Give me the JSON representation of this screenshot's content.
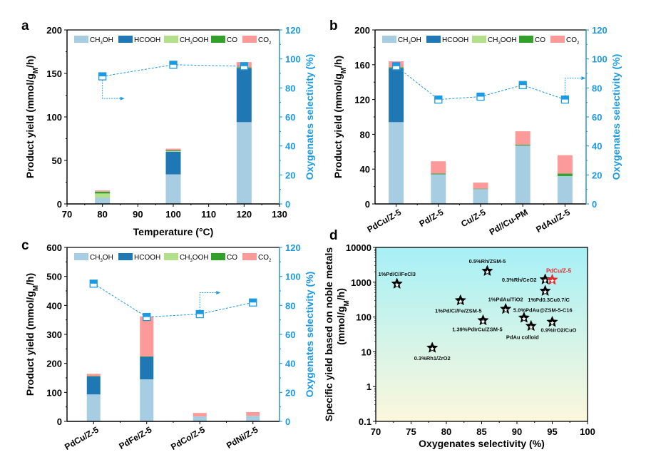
{
  "chart_data": [
    {
      "id": "a",
      "type": "bar",
      "stacked": true,
      "panel_letter": "a",
      "x_type": "numeric",
      "xlabel": "Temperature (°C)",
      "ylabel": "Product yield (mmol/g_M/h)",
      "ylabel_right": "Oxygenates selectivity (%)",
      "xlim": [
        70,
        130
      ],
      "xticks": [
        70,
        80,
        90,
        100,
        110,
        120,
        130
      ],
      "ylim": [
        0,
        200
      ],
      "yticks": [
        0,
        50,
        100,
        150,
        200
      ],
      "ylim_right": [
        0,
        120
      ],
      "yticks_right": [
        0,
        20,
        40,
        60,
        80,
        100,
        120
      ],
      "legend_position": "top",
      "categories": [
        80,
        100,
        120
      ],
      "series": [
        {
          "name": "CH3OH",
          "label_main": "CH",
          "label_sub": "3",
          "label_tail": "OH",
          "color": "#a6cde2",
          "values": [
            7,
            34,
            94
          ]
        },
        {
          "name": "HCOOH",
          "label_main": "HCOOH",
          "label_sub": "",
          "label_tail": "",
          "color": "#1f78b4",
          "values": [
            0,
            26,
            62
          ]
        },
        {
          "name": "CH3OOH",
          "label_main": "CH",
          "label_sub": "3",
          "label_tail": "OOH",
          "color": "#b2df8a",
          "values": [
            5,
            0.5,
            0
          ]
        },
        {
          "name": "CO",
          "label_main": "CO",
          "label_sub": "",
          "label_tail": "",
          "color": "#33a02c",
          "values": [
            2,
            1,
            1
          ]
        },
        {
          "name": "CO2",
          "label_main": "CO",
          "label_sub": "2",
          "label_tail": "",
          "color": "#fb9a99",
          "values": [
            1.5,
            2,
            6
          ]
        }
      ],
      "selectivity": {
        "name": "Oxygenates selectivity",
        "color": "#1b9ae4",
        "values": [
          88,
          96,
          95
        ]
      },
      "arrow_from_index": 0
    },
    {
      "id": "b",
      "type": "bar",
      "stacked": true,
      "panel_letter": "b",
      "x_type": "category",
      "xlabel": "",
      "ylabel": "Product yield (mmol/g_M/h)",
      "ylabel_right": "Oxygenates selectivity (%)",
      "ylim": [
        0,
        200
      ],
      "yticks": [
        0,
        40,
        80,
        120,
        160,
        200
      ],
      "ylim_right": [
        0,
        120
      ],
      "yticks_right": [
        0,
        20,
        40,
        60,
        80,
        100,
        120
      ],
      "legend_position": "top",
      "categories": [
        "PdCu/Z-5",
        "Pd/Z-5",
        "Cu/Z-5",
        "Pd//Cu-PM",
        "PdAu/Z-5"
      ],
      "series": [
        {
          "name": "CH3OH",
          "label_main": "CH",
          "label_sub": "3",
          "label_tail": "OH",
          "color": "#a6cde2",
          "values": [
            94,
            34,
            17,
            67,
            32
          ]
        },
        {
          "name": "HCOOH",
          "label_main": "HCOOH",
          "label_sub": "",
          "label_tail": "",
          "color": "#1f78b4",
          "values": [
            62,
            0,
            0,
            0,
            0
          ]
        },
        {
          "name": "CH3OOH",
          "label_main": "CH",
          "label_sub": "3",
          "label_tail": "OOH",
          "color": "#b2df8a",
          "values": [
            0,
            0,
            0,
            0,
            0
          ]
        },
        {
          "name": "CO",
          "label_main": "CO",
          "label_sub": "",
          "label_tail": "",
          "color": "#33a02c",
          "values": [
            1,
            1,
            0.5,
            1,
            3
          ]
        },
        {
          "name": "CO2",
          "label_main": "CO",
          "label_sub": "2",
          "label_tail": "",
          "color": "#fb9a99",
          "values": [
            7,
            14,
            7,
            15.5,
            21
          ]
        }
      ],
      "selectivity": {
        "name": "Oxygenates selectivity",
        "color": "#1b9ae4",
        "values": [
          95,
          72,
          74,
          82,
          72
        ]
      },
      "arrow_from_index": 4
    },
    {
      "id": "c",
      "type": "bar",
      "stacked": true,
      "panel_letter": "c",
      "x_type": "category",
      "xlabel": "",
      "ylabel": "Product yield (mmol/g_M/h)",
      "ylabel_right": "Oxygenates selectivity (%)",
      "ylim": [
        0,
        600
      ],
      "yticks": [
        0,
        100,
        200,
        300,
        400,
        500,
        600
      ],
      "ylim_right": [
        0,
        120
      ],
      "yticks_right": [
        0,
        20,
        40,
        60,
        80,
        100,
        120
      ],
      "legend_position": "top",
      "categories": [
        "PdCu/Z-5",
        "PdFe/Z-5",
        "PdCo/Z-5",
        "PdNi/Z-5"
      ],
      "series": [
        {
          "name": "CH3OH",
          "label_main": "CH",
          "label_sub": "3",
          "label_tail": "OH",
          "color": "#a6cde2",
          "values": [
            93,
            145,
            17,
            19
          ]
        },
        {
          "name": "HCOOH",
          "label_main": "HCOOH",
          "label_sub": "",
          "label_tail": "",
          "color": "#1f78b4",
          "values": [
            62,
            78,
            0,
            0
          ]
        },
        {
          "name": "CH3OOH",
          "label_main": "CH",
          "label_sub": "3",
          "label_tail": "OOH",
          "color": "#b2df8a",
          "values": [
            0,
            0,
            0,
            0
          ]
        },
        {
          "name": "CO",
          "label_main": "CO",
          "label_sub": "",
          "label_tail": "",
          "color": "#33a02c",
          "values": [
            1,
            1,
            0,
            0
          ]
        },
        {
          "name": "CO2",
          "label_main": "CO",
          "label_sub": "2",
          "label_tail": "",
          "color": "#fb9a99",
          "values": [
            8,
            138,
            12,
            13
          ]
        }
      ],
      "selectivity": {
        "name": "Oxygenates selectivity",
        "color": "#1b9ae4",
        "values": [
          95,
          72,
          74,
          82
        ]
      },
      "arrow_from_index": 2
    },
    {
      "id": "d",
      "type": "scatter",
      "panel_letter": "d",
      "xlabel": "Oxygenates selectivity (%)",
      "ylabel": "Specific yield based on noble metals",
      "ylabel_line2": "(mmol/g_M/h)",
      "xlim": [
        70,
        100
      ],
      "xticks": [
        70,
        75,
        80,
        85,
        90,
        95,
        100
      ],
      "ylim": [
        0.1,
        10000
      ],
      "yscale": "log",
      "yticks": [
        0.1,
        1,
        10,
        100,
        1000,
        10000
      ],
      "ytick_labels": [
        "0.1",
        "1",
        "10",
        "100",
        "1000",
        "10000"
      ],
      "background_gradient": {
        "top": "#a6f0f6",
        "bottom": "#fcf7dc"
      },
      "points": [
        {
          "label": "1%Pd/C//FeCl3",
          "x": 73,
          "y": 900,
          "color": "#000000",
          "label_pos": "above"
        },
        {
          "label": "0.3%Rh1/ZrO2",
          "x": 78,
          "y": 13,
          "color": "#000000",
          "label_pos": "below"
        },
        {
          "label": "1%Pd/C//Fe/ZSM-5",
          "x": 82,
          "y": 300,
          "color": "#000000",
          "label_pos": "below"
        },
        {
          "label": "1.39%PdIrCu/ZSM-5",
          "x": 85.2,
          "y": 80,
          "color": "#000000",
          "label_pos": "below"
        },
        {
          "label": "0.5%Rh/ZSM-5",
          "x": 85.8,
          "y": 2100,
          "color": "#000000",
          "label_pos": "above"
        },
        {
          "label": "1%PdAu/TiO2",
          "x": 88.4,
          "y": 170,
          "color": "#000000",
          "label_pos": "above"
        },
        {
          "label": "5.0%PdAu@ZSM-5-C16",
          "x": 91,
          "y": 95,
          "color": "#000000",
          "label_pos": "above-right"
        },
        {
          "label": "PdAu colloid",
          "x": 92,
          "y": 55,
          "color": "#000000",
          "label_pos": "below-left"
        },
        {
          "label": "0.3%Rh/CeO2",
          "x": 94,
          "y": 1200,
          "color": "#000000",
          "label_pos": "left"
        },
        {
          "label": "1%Pd0.3Cu0.7/C",
          "x": 94,
          "y": 560,
          "color": "#000000",
          "label_pos": "below"
        },
        {
          "label": "0.9%IrO2/CuO",
          "x": 95,
          "y": 72,
          "color": "#000000",
          "label_pos": "below"
        },
        {
          "label": "PdCu/Z-5",
          "x": 95,
          "y": 1170,
          "color": "#e8282b",
          "label_pos": "above",
          "highlight": true
        }
      ]
    }
  ]
}
